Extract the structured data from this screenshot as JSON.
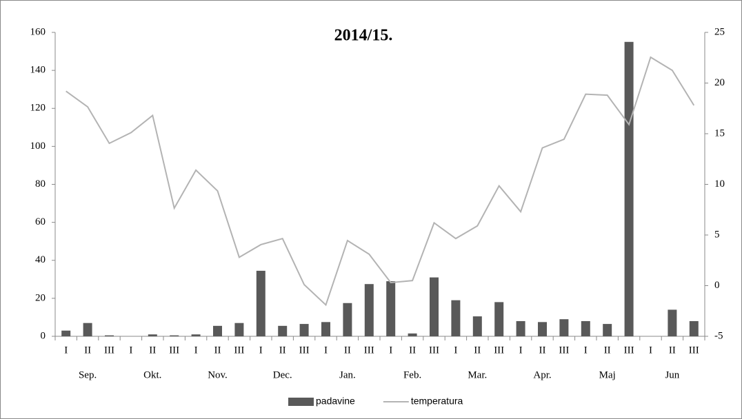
{
  "chart_data": {
    "type": "bar",
    "title": "2014/15.",
    "categories": [
      "I",
      "II",
      "III",
      "I",
      "II",
      "III",
      "I",
      "II",
      "III",
      "I",
      "II",
      "III",
      "I",
      "II",
      "III",
      "I",
      "II",
      "III",
      "I",
      "II",
      "III",
      "I",
      "II",
      "III",
      "I",
      "II",
      "III",
      "I",
      "II",
      "III"
    ],
    "groups": [
      "Sep.",
      "Okt.",
      "Nov.",
      "Dec.",
      "Jan.",
      "Feb.",
      "Mar.",
      "Apr.",
      "Maj",
      "Jun"
    ],
    "series": [
      {
        "name": "padavine",
        "type": "bar",
        "color": "#595959",
        "values": [
          3,
          7,
          0.5,
          0,
          1,
          0.5,
          1,
          5.5,
          7,
          34.5,
          5.5,
          6.5,
          7.5,
          17.5,
          27.5,
          29,
          1.5,
          31,
          19,
          10.5,
          18,
          8,
          7.5,
          9,
          8,
          6.5,
          155,
          0,
          14,
          8
        ]
      },
      {
        "name": "temperatura",
        "type": "line",
        "axis": "y2",
        "color": "#b3b3b3",
        "values": [
          19.2,
          17.65,
          14.05,
          15.1,
          16.8,
          7.65,
          11.4,
          9.35,
          2.8,
          4.05,
          4.65,
          0.1,
          -1.9,
          4.45,
          3.1,
          0.3,
          0.5,
          6.2,
          4.65,
          5.9,
          9.85,
          7.3,
          13.6,
          14.45,
          18.9,
          18.8,
          15.9,
          22.55,
          21.25,
          17.8
        ]
      }
    ],
    "ylim": [
      0,
      160
    ],
    "yticks": [
      0,
      20,
      40,
      60,
      80,
      100,
      120,
      140,
      160
    ],
    "y2lim": [
      -5,
      25
    ],
    "y2ticks": [
      -5,
      0,
      5,
      10,
      15,
      20,
      25
    ],
    "legend": "bottom"
  }
}
